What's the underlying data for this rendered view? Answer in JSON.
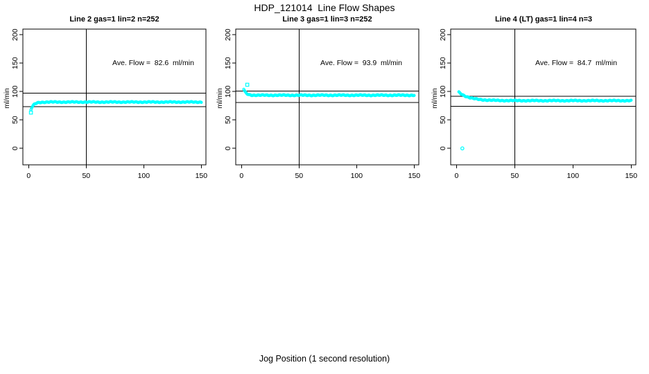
{
  "header": {
    "title": "HDP_121014  Line Flow Shapes"
  },
  "footer": {
    "xlabel": "Jog Position (1 second resolution)"
  },
  "colors": {
    "points": "#00ffff",
    "axis": "#000000",
    "text": "#000000",
    "background": "#ffffff"
  },
  "chart_data": [
    {
      "type": "scatter",
      "title": "Line 2 gas=1 lin=2 n=252",
      "gas": 1,
      "lin": 2,
      "n": 252,
      "ylabel": "ml/min",
      "annotation": "Ave. Flow =  82.6  ml/min",
      "ave_flow_ml_min": 82.6,
      "xlim": [
        -5,
        154
      ],
      "ylim": [
        -29,
        210
      ],
      "xticks": [
        0,
        50,
        100,
        150
      ],
      "yticks": [
        0,
        50,
        100,
        150,
        200
      ],
      "vline_x": 50,
      "hlines": [
        97.5,
        73.5
      ],
      "series": {
        "model": "exponential_approach",
        "x_start": 2,
        "x_end": 150,
        "n_points": 250,
        "start_value": 68,
        "plateau": 81.5,
        "tau": 2.5
      },
      "outliers": [
        {
          "x": 2,
          "y": 63,
          "marker": "square"
        }
      ]
    },
    {
      "type": "scatter",
      "title": "Line 3 gas=1 lin=3 n=252",
      "gas": 1,
      "lin": 3,
      "n": 252,
      "ylabel": "ml/min",
      "annotation": "Ave. Flow =  93.9  ml/min",
      "ave_flow_ml_min": 93.9,
      "xlim": [
        -5,
        154
      ],
      "ylim": [
        -29,
        210
      ],
      "xticks": [
        0,
        50,
        100,
        150
      ],
      "yticks": [
        0,
        50,
        100,
        150,
        200
      ],
      "vline_x": 50,
      "hlines": [
        101,
        80.5
      ],
      "series": {
        "model": "exponential_decay",
        "x_start": 2,
        "x_end": 150,
        "n_points": 250,
        "start_value": 104,
        "plateau": 93.5,
        "tau": 2.0
      },
      "outliers": [
        {
          "x": 5,
          "y": 112,
          "marker": "square"
        }
      ]
    },
    {
      "type": "scatter",
      "title": "Line 4 (LT) gas=1 lin=4 n=3",
      "gas": 1,
      "lin": 4,
      "n": 3,
      "ylabel": "ml/min",
      "annotation": "Ave. Flow =  84.7  ml/min",
      "ave_flow_ml_min": 84.7,
      "xlim": [
        -5,
        154
      ],
      "ylim": [
        -29,
        210
      ],
      "xticks": [
        0,
        50,
        100,
        150
      ],
      "yticks": [
        0,
        50,
        100,
        150,
        200
      ],
      "vline_x": 50,
      "hlines": [
        91.5,
        74
      ],
      "series": {
        "model": "exponential_decay",
        "x_start": 2,
        "x_end": 150,
        "n_points": 250,
        "start_value": 99,
        "plateau": 84,
        "tau": 9
      },
      "outliers": [
        {
          "x": 5,
          "y": 0,
          "marker": "circle"
        }
      ]
    }
  ]
}
